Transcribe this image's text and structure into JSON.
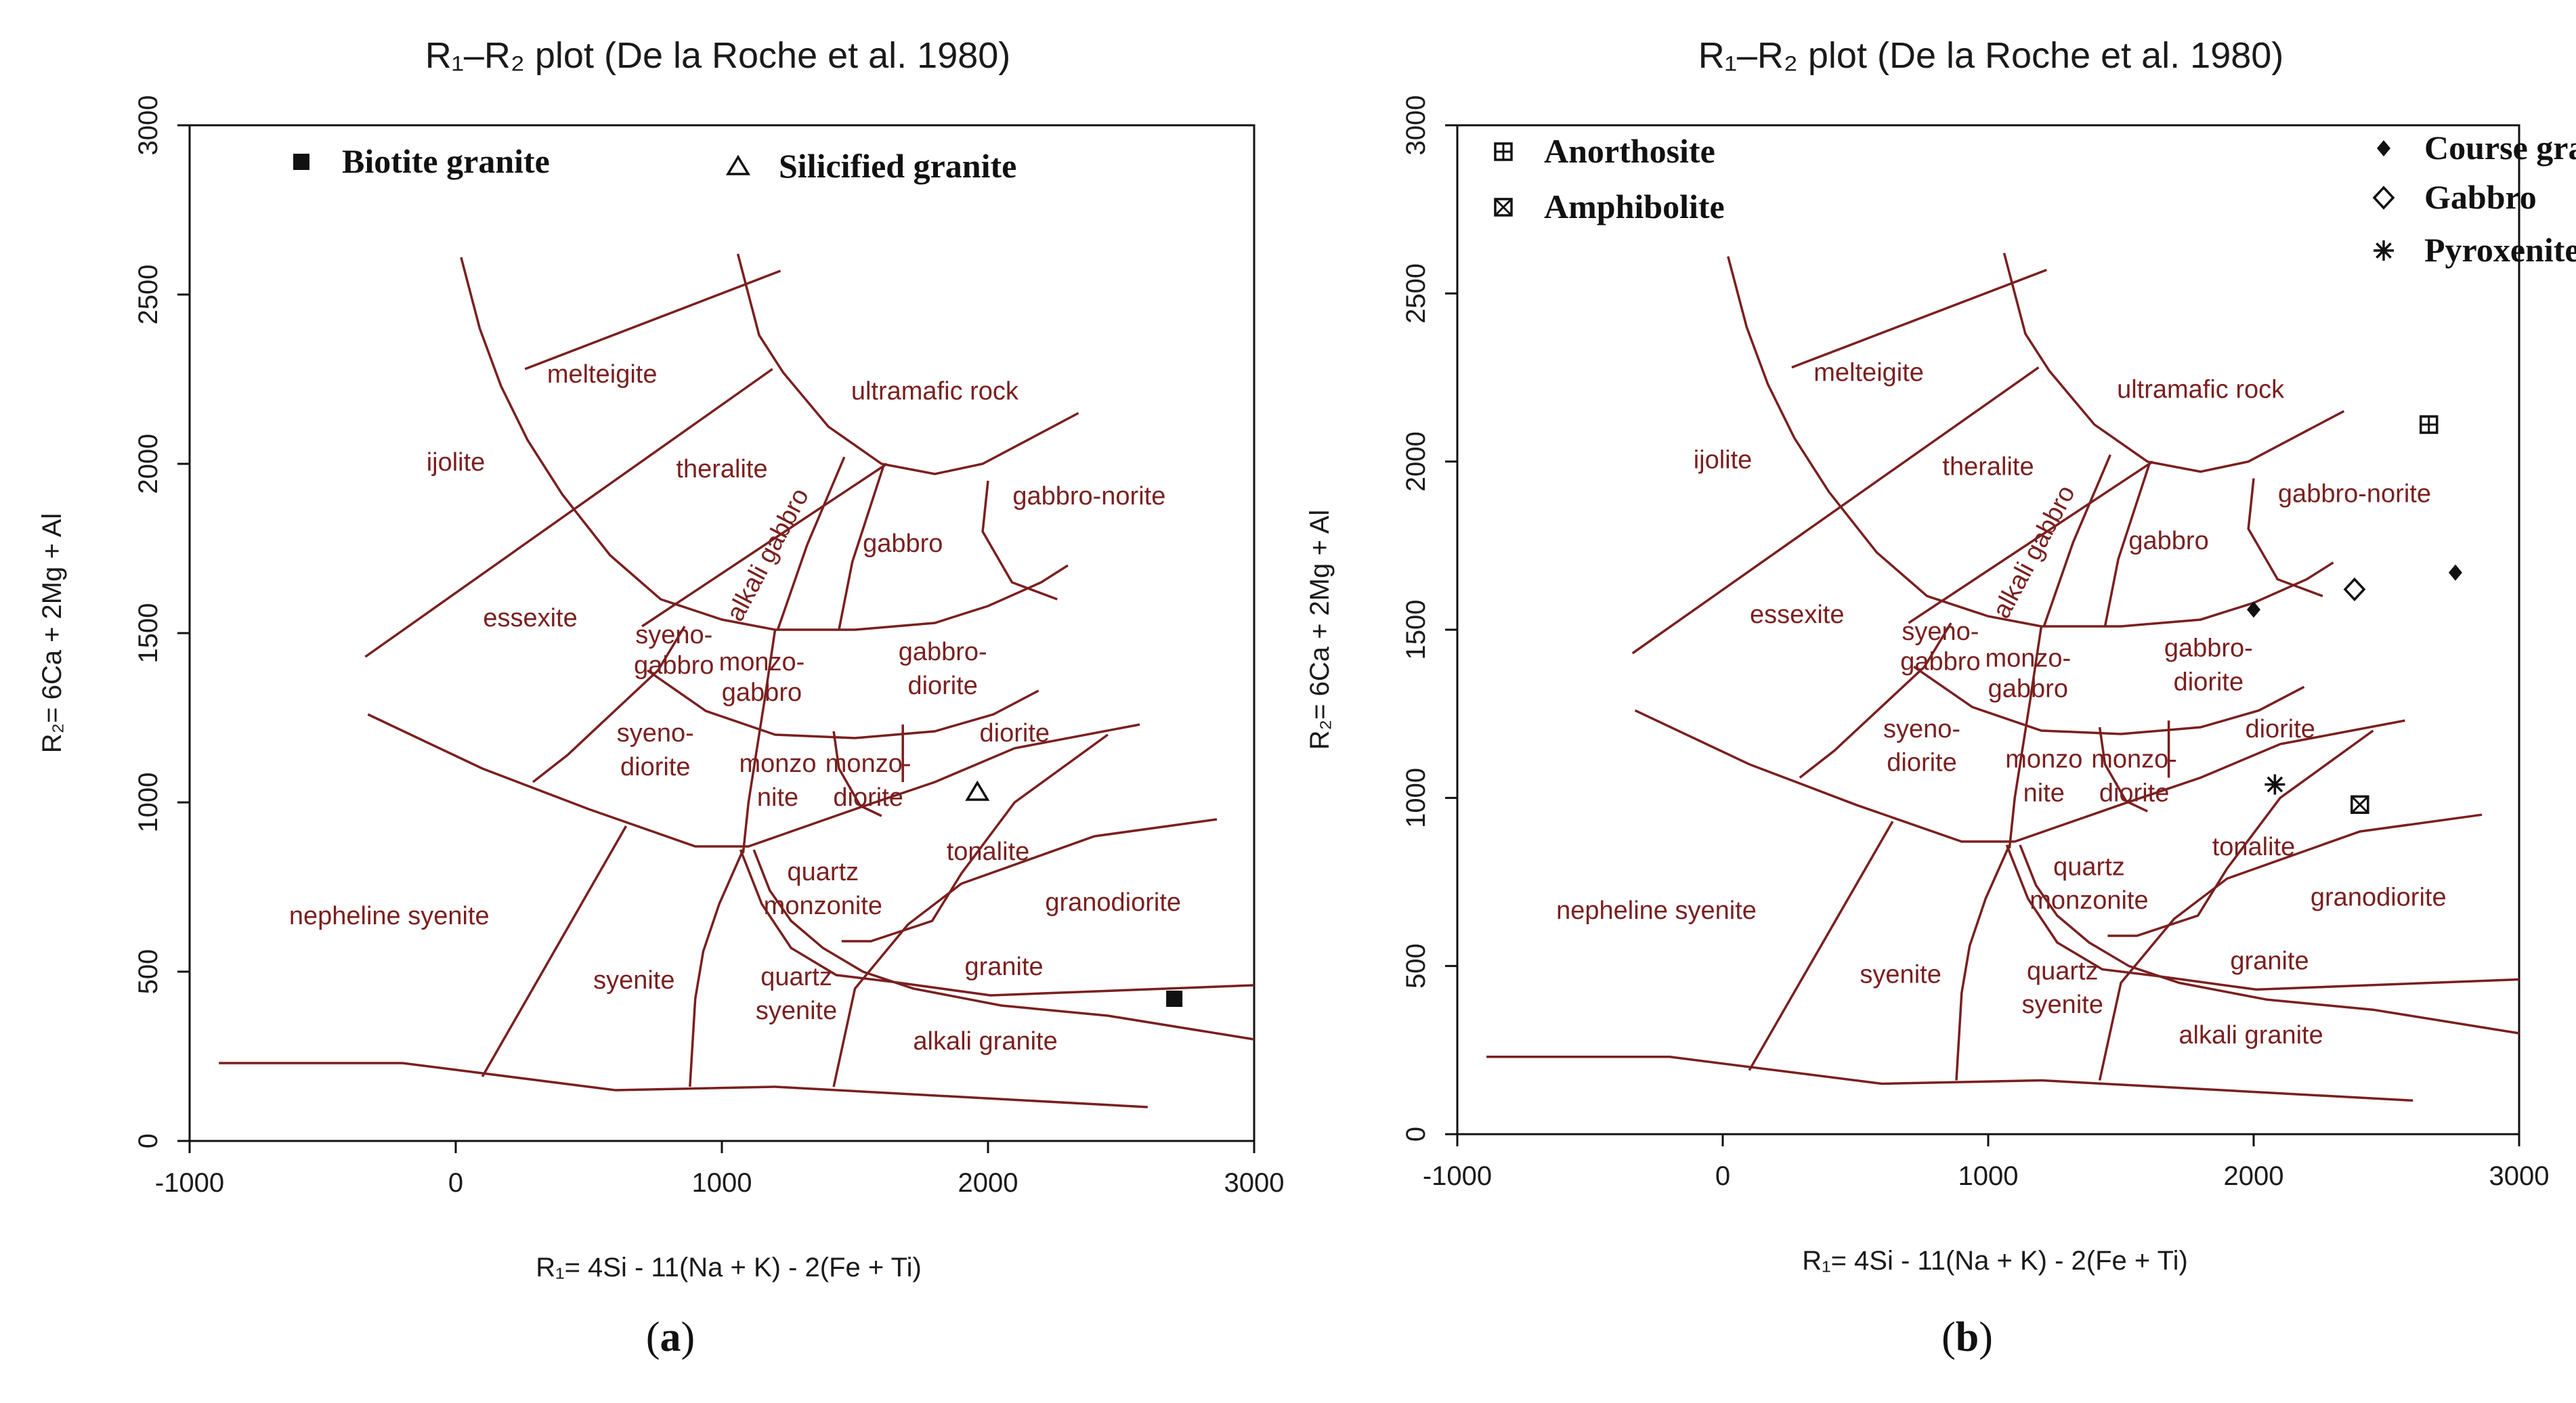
{
  "chart_data": [
    {
      "type": "scatter",
      "panel_label": "a",
      "title": "R₁–R₂ plot (De la Roche et al. 1980)",
      "xlabel": "R₁= 4Si - 11(Na + K) - 2(Fe + Ti)",
      "ylabel": "R₂= 6Ca + 2Mg + Al",
      "xlim": [
        -1000,
        3000
      ],
      "ylim": [
        0,
        3000
      ],
      "xticks": [
        "-1000",
        "0",
        "1000",
        "2000",
        "3000"
      ],
      "yticks": [
        "0",
        "500",
        "1000",
        "1500",
        "2000",
        "2500",
        "3000"
      ],
      "legend": [
        {
          "label": "Biotite granite",
          "marker": "filled-square"
        },
        {
          "label": "Silicified granite",
          "marker": "open-triangle"
        }
      ],
      "series": [
        {
          "name": "Biotite granite",
          "marker": "filled-square",
          "points": [
            [
              2700,
              420
            ]
          ]
        },
        {
          "name": "Silicified granite",
          "marker": "open-triangle",
          "points": [
            [
              1960,
              1030
            ]
          ]
        }
      ],
      "fields": [
        {
          "name": "melteigite",
          "x": 550,
          "y": 2240
        },
        {
          "name": "ultramafic rock",
          "x": 1800,
          "y": 2190
        },
        {
          "name": "ijolite",
          "x": 0,
          "y": 1980
        },
        {
          "name": "theralite",
          "x": 1000,
          "y": 1960
        },
        {
          "name": "alkali gabbro",
          "x": 1200,
          "y": 1720,
          "rotate": -62
        },
        {
          "name": "gabbro",
          "x": 1680,
          "y": 1740
        },
        {
          "name": "gabbro-norite",
          "x": 2380,
          "y": 1880
        },
        {
          "name": "essexite",
          "x": 280,
          "y": 1520
        },
        {
          "name": "syeno-",
          "x": 820,
          "y": 1470
        },
        {
          "name": "gabbro",
          "x": 820,
          "y": 1380
        },
        {
          "name": "monzo-",
          "x": 1150,
          "y": 1390
        },
        {
          "name": "gabbro",
          "x": 1150,
          "y": 1300
        },
        {
          "name": "gabbro-",
          "x": 1830,
          "y": 1420
        },
        {
          "name": "diorite",
          "x": 1830,
          "y": 1320
        },
        {
          "name": "syeno-",
          "x": 750,
          "y": 1180
        },
        {
          "name": "diorite",
          "x": 750,
          "y": 1080
        },
        {
          "name": "diorite",
          "x": 2100,
          "y": 1180
        },
        {
          "name": "monzo",
          "x": 1210,
          "y": 1090
        },
        {
          "name": "nite",
          "x": 1210,
          "y": 990
        },
        {
          "name": "monzo-",
          "x": 1550,
          "y": 1090
        },
        {
          "name": "diorite",
          "x": 1550,
          "y": 990
        },
        {
          "name": "tonalite",
          "x": 2000,
          "y": 830
        },
        {
          "name": "granodiorite",
          "x": 2470,
          "y": 680
        },
        {
          "name": "quartz",
          "x": 1380,
          "y": 770
        },
        {
          "name": "monzonite",
          "x": 1380,
          "y": 670
        },
        {
          "name": "nepheline syenite",
          "x": -250,
          "y": 640
        },
        {
          "name": "syenite",
          "x": 670,
          "y": 450
        },
        {
          "name": "quartz",
          "x": 1280,
          "y": 460
        },
        {
          "name": "syenite",
          "x": 1280,
          "y": 360
        },
        {
          "name": "granite",
          "x": 2060,
          "y": 490
        },
        {
          "name": "alkali granite",
          "x": 1990,
          "y": 270
        }
      ]
    },
    {
      "type": "scatter",
      "panel_label": "b",
      "title": "R₁–R₂ plot (De la Roche et al. 1980)",
      "xlabel": "R₁= 4Si - 11(Na + K) - 2(Fe + Ti)",
      "ylabel": "R₂= 6Ca + 2Mg + Al",
      "xlim": [
        -1000,
        3000
      ],
      "ylim": [
        0,
        3000
      ],
      "xticks": [
        "-1000",
        "0",
        "1000",
        "2000",
        "3000"
      ],
      "yticks": [
        "0",
        "500",
        "1000",
        "1500",
        "2000",
        "2500",
        "3000"
      ],
      "legend": [
        {
          "label": "Anorthosite",
          "marker": "square-plus"
        },
        {
          "label": "Amphibolite",
          "marker": "square-x"
        },
        {
          "label": "Course grained Amphibolite",
          "marker": "filled-diamond"
        },
        {
          "label": "Gabbro",
          "marker": "open-diamond"
        },
        {
          "label": "Pyroxenite",
          "marker": "asterisk"
        }
      ],
      "series": [
        {
          "name": "Anorthosite",
          "marker": "square-plus",
          "points": [
            [
              2660,
              2110
            ]
          ]
        },
        {
          "name": "Amphibolite",
          "marker": "square-x",
          "points": [
            [
              2400,
              980
            ]
          ]
        },
        {
          "name": "Course grained Amphibolite",
          "marker": "filled-diamond",
          "points": [
            [
              2000,
              1560
            ],
            [
              2760,
              1670
            ]
          ]
        },
        {
          "name": "Gabbro",
          "marker": "open-diamond",
          "points": [
            [
              2380,
              1620
            ]
          ]
        },
        {
          "name": "Pyroxenite",
          "marker": "asterisk",
          "points": [
            [
              2080,
              1040
            ]
          ]
        }
      ],
      "fields": [
        {
          "name": "melteigite",
          "x": 550,
          "y": 2240
        },
        {
          "name": "ultramafic rock",
          "x": 1800,
          "y": 2190
        },
        {
          "name": "ijolite",
          "x": 0,
          "y": 1980
        },
        {
          "name": "theralite",
          "x": 1000,
          "y": 1960
        },
        {
          "name": "alkali gabbro",
          "x": 1200,
          "y": 1720,
          "rotate": -62
        },
        {
          "name": "gabbro",
          "x": 1680,
          "y": 1740
        },
        {
          "name": "gabbro-norite",
          "x": 2380,
          "y": 1880
        },
        {
          "name": "essexite",
          "x": 280,
          "y": 1520
        },
        {
          "name": "syeno-",
          "x": 820,
          "y": 1470
        },
        {
          "name": "gabbro",
          "x": 820,
          "y": 1380
        },
        {
          "name": "monzo-",
          "x": 1150,
          "y": 1390
        },
        {
          "name": "gabbro",
          "x": 1150,
          "y": 1300
        },
        {
          "name": "gabbro-",
          "x": 1830,
          "y": 1420
        },
        {
          "name": "diorite",
          "x": 1830,
          "y": 1320
        },
        {
          "name": "syeno-",
          "x": 750,
          "y": 1180
        },
        {
          "name": "diorite",
          "x": 750,
          "y": 1080
        },
        {
          "name": "diorite",
          "x": 2100,
          "y": 1180
        },
        {
          "name": "monzo",
          "x": 1210,
          "y": 1090
        },
        {
          "name": "nite",
          "x": 1210,
          "y": 990
        },
        {
          "name": "monzo-",
          "x": 1550,
          "y": 1090
        },
        {
          "name": "diorite",
          "x": 1550,
          "y": 990
        },
        {
          "name": "tonalite",
          "x": 2000,
          "y": 830
        },
        {
          "name": "granodiorite",
          "x": 2470,
          "y": 680
        },
        {
          "name": "quartz",
          "x": 1380,
          "y": 770
        },
        {
          "name": "monzonite",
          "x": 1380,
          "y": 670
        },
        {
          "name": "nepheline syenite",
          "x": -250,
          "y": 640
        },
        {
          "name": "syenite",
          "x": 670,
          "y": 450
        },
        {
          "name": "quartz",
          "x": 1280,
          "y": 460
        },
        {
          "name": "syenite",
          "x": 1280,
          "y": 360
        },
        {
          "name": "granite",
          "x": 2060,
          "y": 490
        },
        {
          "name": "alkali granite",
          "x": 1990,
          "y": 270
        }
      ]
    }
  ]
}
